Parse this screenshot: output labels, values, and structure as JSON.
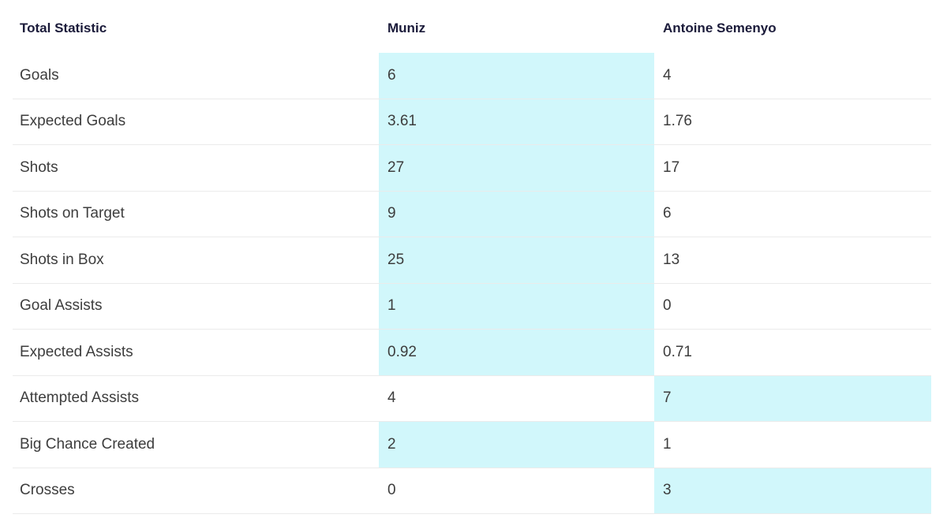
{
  "header": {
    "statistic": "Total Statistic",
    "player1": "Muniz",
    "player2": "Antoine Semenyo"
  },
  "highlight_color": "#d1f7fb",
  "rows": [
    {
      "label": "Goals",
      "p1": "6",
      "p2": "4",
      "leader": "p1"
    },
    {
      "label": "Expected Goals",
      "p1": "3.61",
      "p2": "1.76",
      "leader": "p1"
    },
    {
      "label": "Shots",
      "p1": "27",
      "p2": "17",
      "leader": "p1"
    },
    {
      "label": "Shots on Target",
      "p1": "9",
      "p2": "6",
      "leader": "p1"
    },
    {
      "label": "Shots in Box",
      "p1": "25",
      "p2": "13",
      "leader": "p1"
    },
    {
      "label": "Goal Assists",
      "p1": "1",
      "p2": "0",
      "leader": "p1"
    },
    {
      "label": "Expected Assists",
      "p1": "0.92",
      "p2": "0.71",
      "leader": "p1"
    },
    {
      "label": "Attempted Assists",
      "p1": "4",
      "p2": "7",
      "leader": "p2"
    },
    {
      "label": "Big Chance Created",
      "p1": "2",
      "p2": "1",
      "leader": "p1"
    },
    {
      "label": "Crosses",
      "p1": "0",
      "p2": "3",
      "leader": "p2"
    }
  ]
}
